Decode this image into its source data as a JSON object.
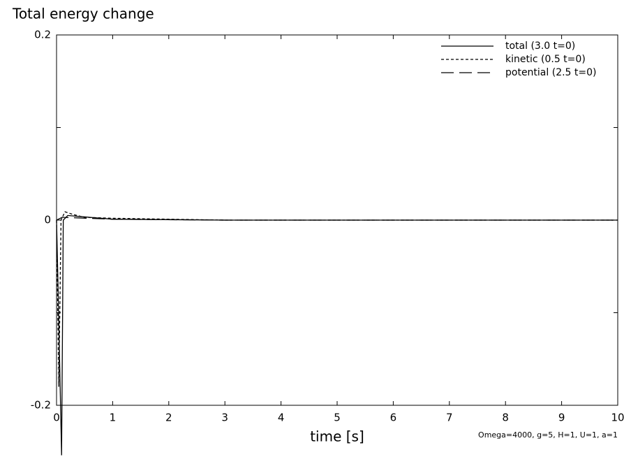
{
  "chart_data": {
    "type": "line",
    "title": "Total energy change",
    "x_label": "time [s]",
    "annotation": "Omega=4000, g=5, H=1, U=1, a=1",
    "xlim": [
      0,
      10
    ],
    "xticks": [
      0,
      1,
      2,
      3,
      4,
      5,
      6,
      7,
      8,
      9,
      10
    ],
    "ylim": [
      -0.2,
      0.2
    ],
    "yticks": [
      -0.2,
      0,
      0.2
    ],
    "yminor_ticks": [
      -0.1,
      0.1
    ],
    "legend": "top-right",
    "series": [
      {
        "name": "total (3.0 t=0)",
        "color": "#000000",
        "dash": "none",
        "x": [
          0,
          0.03,
          0.09,
          0.12,
          0.2,
          1,
          3,
          10
        ],
        "values": [
          0,
          -0.08,
          -0.254,
          0,
          0.005,
          0.001,
          0,
          0
        ]
      },
      {
        "name": "kinetic (0.5 t=0)",
        "color": "#000000",
        "dash": "4 3",
        "x": [
          0,
          0.04,
          0.08,
          0.15,
          0.3,
          0.5,
          1,
          3,
          10
        ],
        "values": [
          0,
          -0.18,
          0,
          0.009,
          0.006,
          0.003,
          0.002,
          0,
          0
        ]
      },
      {
        "name": "potential (2.5 t=0)",
        "color": "#000000",
        "dash": "18 8",
        "x": [
          0,
          0.1,
          1,
          3,
          9.9,
          10
        ],
        "values": [
          0,
          0.003,
          0.001,
          0,
          0,
          -0.001
        ]
      }
    ]
  }
}
